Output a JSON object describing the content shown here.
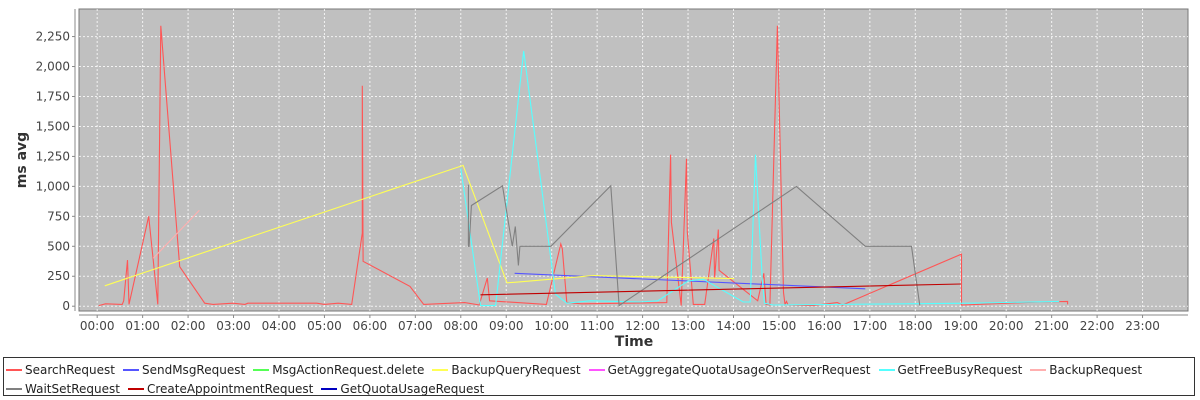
{
  "chart_data": {
    "type": "line",
    "title": "",
    "xlabel": "Time",
    "ylabel": "ms avg",
    "xlim": [
      "-00:24",
      "24:00"
    ],
    "ylim": [
      -40,
      2480
    ],
    "grid": true,
    "legend_position": "bottom",
    "background": "#C0C0C0",
    "x_ticks": [
      "00:00",
      "01:00",
      "02:00",
      "03:00",
      "04:00",
      "05:00",
      "06:00",
      "07:00",
      "08:00",
      "09:00",
      "10:00",
      "11:00",
      "12:00",
      "13:00",
      "14:00",
      "15:00",
      "16:00",
      "17:00",
      "18:00",
      "19:00",
      "20:00",
      "21:00",
      "22:00",
      "23:00"
    ],
    "y_ticks": [
      0,
      250,
      500,
      750,
      1000,
      1250,
      1500,
      1750,
      2000,
      2250
    ],
    "y_tick_labels": [
      "0",
      "250",
      "500",
      "750",
      "1,000",
      "1,250",
      "1,500",
      "1,750",
      "2,000",
      "2,250"
    ],
    "series": [
      {
        "name": "SearchRequest",
        "color": "#FF5555",
        "points": [
          [
            "00:02",
            5
          ],
          [
            "00:11",
            20
          ],
          [
            "00:33",
            15
          ],
          [
            "00:35",
            45
          ],
          [
            "00:40",
            385
          ],
          [
            "00:42",
            15
          ],
          [
            "01:08",
            750
          ],
          [
            "01:20",
            15
          ],
          [
            "01:24",
            2340
          ],
          [
            "01:49",
            330
          ],
          [
            "02:22",
            25
          ],
          [
            "02:33",
            15
          ],
          [
            "02:59",
            25
          ],
          [
            "03:15",
            15
          ],
          [
            "03:19",
            25
          ],
          [
            "04:50",
            25
          ],
          [
            "05:00",
            15
          ],
          [
            "05:18",
            25
          ],
          [
            "05:36",
            15
          ],
          [
            "05:50",
            610
          ],
          [
            "05:50",
            1840
          ],
          [
            "05:51",
            375
          ],
          [
            "06:53",
            165
          ],
          [
            "07:11",
            15
          ],
          [
            "08:05",
            30
          ],
          [
            "08:25",
            10
          ],
          [
            "08:25",
            25
          ],
          [
            "08:35",
            235
          ],
          [
            "08:38",
            45
          ],
          [
            "09:53",
            15
          ],
          [
            "10:12",
            520
          ],
          [
            "10:14",
            480
          ],
          [
            "10:20",
            30
          ],
          [
            "10:40",
            20
          ],
          [
            "12:32",
            30
          ],
          [
            "12:37",
            1265
          ],
          [
            "12:38",
            700
          ],
          [
            "12:51",
            5
          ],
          [
            "12:58",
            1230
          ],
          [
            "12:59",
            620
          ],
          [
            "13:07",
            15
          ],
          [
            "13:22",
            15
          ],
          [
            "13:34",
            565
          ],
          [
            "13:35",
            230
          ],
          [
            "13:40",
            640
          ],
          [
            "13:41",
            300
          ],
          [
            "14:32",
            45
          ],
          [
            "14:40",
            275
          ],
          [
            "14:43",
            15
          ],
          [
            "14:48",
            10
          ],
          [
            "14:58",
            2340
          ],
          [
            "15:06",
            115
          ],
          [
            "15:08",
            15
          ],
          [
            "15:10",
            40
          ],
          [
            "15:12",
            10
          ],
          [
            "15:45",
            5
          ],
          [
            "16:17",
            30
          ],
          [
            "16:24",
            10
          ],
          [
            "19:01",
            435
          ],
          [
            "19:01",
            10
          ],
          [
            "20:44",
            35
          ],
          [
            "21:21",
            40
          ],
          [
            "21:21",
            15
          ]
        ]
      },
      {
        "name": "SendMsgRequest",
        "color": "#5555FF",
        "points": [
          [
            "09:11",
            275
          ],
          [
            "16:54",
            145
          ]
        ]
      },
      {
        "name": "MsgActionRequest.delete",
        "color": "#55FF55",
        "points": []
      },
      {
        "name": "BackupQueryRequest",
        "color": "#FFFF55",
        "points": [
          [
            "00:10",
            170
          ],
          [
            "08:03",
            1175
          ],
          [
            "09:01",
            195
          ],
          [
            "09:13",
            200
          ],
          [
            "10:55",
            255
          ],
          [
            "14:01",
            230
          ]
        ]
      },
      {
        "name": "GetAggregateQuotaUsageOnServerRequest",
        "color": "#FF55FF",
        "points": []
      },
      {
        "name": "GetFreeBusyRequest",
        "color": "#55FFFF",
        "points": [
          [
            "08:00",
            1150
          ],
          [
            "08:26",
            5
          ],
          [
            "08:46",
            5
          ],
          [
            "09:23",
            2130
          ],
          [
            "10:05",
            100
          ],
          [
            "10:20",
            25
          ],
          [
            "10:51",
            45
          ],
          [
            "11:56",
            35
          ],
          [
            "12:20",
            45
          ],
          [
            "13:00",
            210
          ],
          [
            "13:20",
            225
          ],
          [
            "14:13",
            35
          ],
          [
            "14:22",
            35
          ],
          [
            "14:29",
            1265
          ],
          [
            "14:38",
            220
          ],
          [
            "14:41",
            25
          ],
          [
            "14:52",
            10
          ],
          [
            "19:12",
            25
          ],
          [
            "21:10",
            40
          ]
        ]
      },
      {
        "name": "BackupRequest",
        "color": "#FFAFAF",
        "points": [
          [
            "01:14",
            400
          ],
          [
            "02:15",
            800
          ]
        ]
      },
      {
        "name": "WaitSetRequest",
        "color": "#808080",
        "points": [
          [
            "08:10",
            1015
          ],
          [
            "08:10",
            500
          ],
          [
            "08:11",
            500
          ],
          [
            "08:14",
            840
          ],
          [
            "08:55",
            1005
          ],
          [
            "09:08",
            500
          ],
          [
            "09:12",
            665
          ],
          [
            "09:16",
            340
          ],
          [
            "09:18",
            500
          ],
          [
            "09:59",
            500
          ],
          [
            "11:18",
            1005
          ],
          [
            "11:29",
            5
          ],
          [
            "15:23",
            1000
          ],
          [
            "16:54",
            500
          ],
          [
            "17:55",
            500
          ],
          [
            "18:06",
            5
          ]
        ]
      },
      {
        "name": "CreateAppointmentRequest",
        "color": "#C00000",
        "points": [
          [
            "08:26",
            95
          ],
          [
            "19:00",
            185
          ]
        ]
      },
      {
        "name": "GetQuotaUsageRequest",
        "color": "#0000C0",
        "points": []
      }
    ]
  }
}
